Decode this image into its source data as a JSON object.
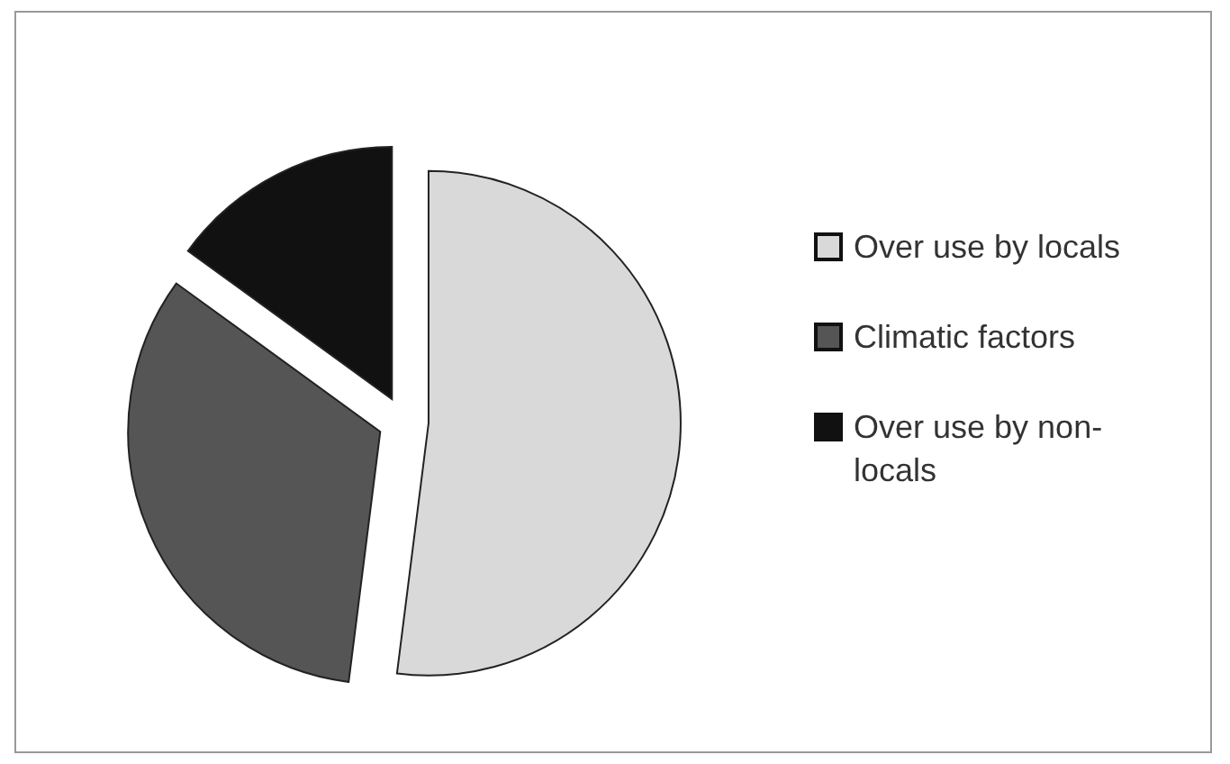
{
  "chart_data": {
    "type": "pie",
    "categories": [
      "Over use by locals",
      "Climatic factors",
      "Over use by non-locals"
    ],
    "values": [
      52,
      33,
      15
    ],
    "colors": [
      "#d9d9d9",
      "#555555",
      "#111111"
    ],
    "legend": "right"
  }
}
